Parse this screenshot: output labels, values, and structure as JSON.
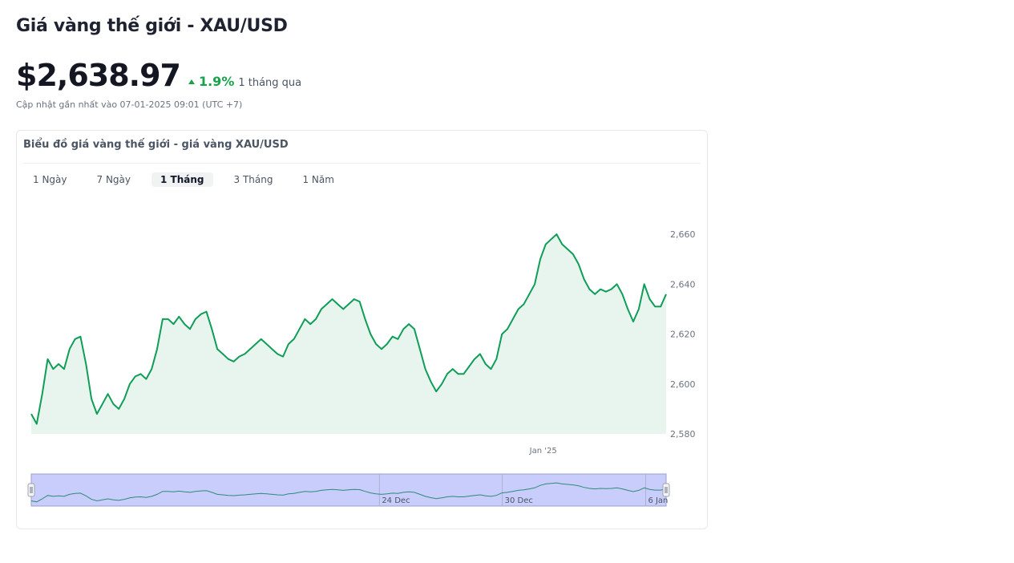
{
  "header": {
    "title": "Giá vàng thế giới - XAU/USD",
    "price": "$2,638.97",
    "change_pct": "1.9%",
    "change_period": "1 tháng qua",
    "updated": "Cập nhật gần nhất vào 07-01-2025 09:01 (UTC +7)"
  },
  "card": {
    "title": "Biểu đồ giá vàng thế giới - giá vàng XAU/USD",
    "tabs": [
      {
        "label": "1 Ngày",
        "active": false
      },
      {
        "label": "7 Ngày",
        "active": false
      },
      {
        "label": "1 Tháng",
        "active": true
      },
      {
        "label": "3 Tháng",
        "active": false
      },
      {
        "label": "1 Năm",
        "active": false
      }
    ]
  },
  "colors": {
    "line": "#0f9d58",
    "fill": "#e8f5ee",
    "up": "#16a34a",
    "navigator_band": "#c9cdfb"
  },
  "chart_data": {
    "type": "area",
    "x_start": "2024-12-07",
    "x_end": "2025-01-07",
    "y_ticks": [
      "2,580",
      "2,600",
      "2,620",
      "2,640",
      "2,660"
    ],
    "ylim": [
      2580,
      2670
    ],
    "x_labels": [
      {
        "label": "Jan '25",
        "date": "2025-01-01"
      }
    ],
    "navigator_labels": [
      {
        "label": "24 Dec",
        "date": "2024-12-24"
      },
      {
        "label": "30 Dec",
        "date": "2024-12-30"
      },
      {
        "label": "6 Jan",
        "date": "2025-01-06"
      }
    ],
    "values": [
      2588,
      2584,
      2596,
      2610,
      2606,
      2608,
      2606,
      2614,
      2618,
      2619,
      2608,
      2594,
      2588,
      2592,
      2596,
      2592,
      2590,
      2594,
      2600,
      2603,
      2604,
      2602,
      2606,
      2614,
      2626,
      2626,
      2624,
      2627,
      2624,
      2622,
      2626,
      2628,
      2629,
      2622,
      2614,
      2612,
      2610,
      2609,
      2611,
      2612,
      2614,
      2616,
      2618,
      2616,
      2614,
      2612,
      2611,
      2616,
      2618,
      2622,
      2626,
      2624,
      2626,
      2630,
      2632,
      2634,
      2632,
      2630,
      2632,
      2634,
      2633,
      2626,
      2620,
      2616,
      2614,
      2616,
      2619,
      2618,
      2622,
      2624,
      2622,
      2614,
      2606,
      2601,
      2597,
      2600,
      2604,
      2606,
      2604,
      2604,
      2607,
      2610,
      2612,
      2608,
      2606,
      2610,
      2620,
      2622,
      2626,
      2630,
      2632,
      2636,
      2640,
      2650,
      2656,
      2658,
      2660,
      2656,
      2654,
      2652,
      2648,
      2642,
      2638,
      2636,
      2638,
      2637,
      2638,
      2640,
      2636,
      2630,
      2625,
      2630,
      2640,
      2634,
      2631,
      2631,
      2636
    ]
  }
}
